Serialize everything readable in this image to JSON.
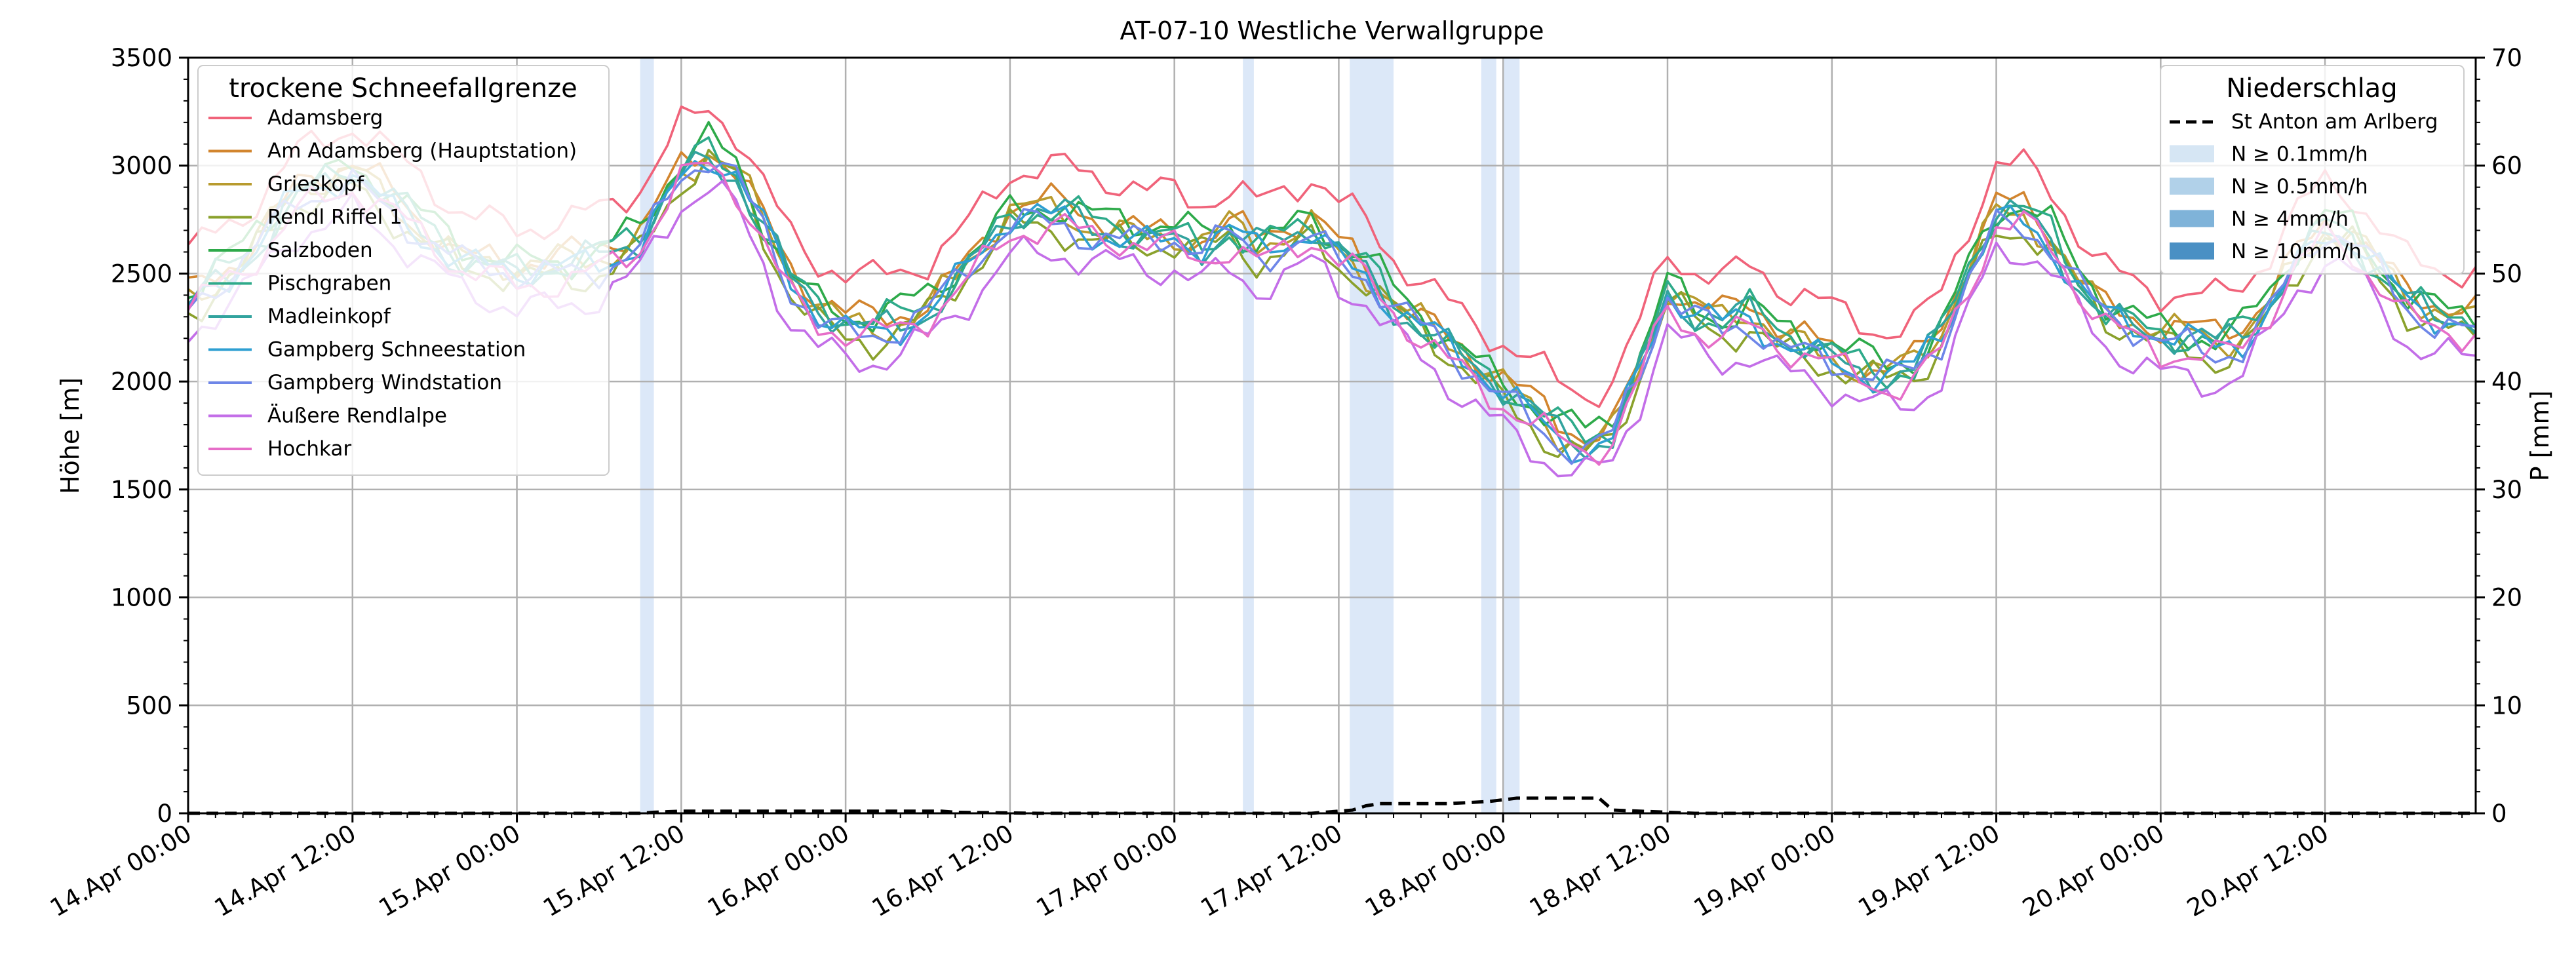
{
  "chart_data": {
    "type": "line",
    "title": "AT-07-10 Westliche Verwallgruppe",
    "ylabel_left": "Höhe [m]",
    "ylabel_right": "P [mm]",
    "ylim_left": [
      0,
      3500
    ],
    "ylim_right": [
      0,
      70
    ],
    "yticks_left": [
      "0",
      "500",
      "1000",
      "1500",
      "2000",
      "2500",
      "3000",
      "3500"
    ],
    "yticks_right": [
      "0",
      "10",
      "20",
      "30",
      "40",
      "50",
      "60",
      "70"
    ],
    "xlim_hours": [
      0,
      167
    ],
    "xticks": [
      {
        "label": "14.Apr 00:00",
        "hour": 0
      },
      {
        "label": "14.Apr 12:00",
        "hour": 12
      },
      {
        "label": "15.Apr 00:00",
        "hour": 24
      },
      {
        "label": "15.Apr 12:00",
        "hour": 36
      },
      {
        "label": "16.Apr 00:00",
        "hour": 48
      },
      {
        "label": "16.Apr 12:00",
        "hour": 60
      },
      {
        "label": "17.Apr 00:00",
        "hour": 72
      },
      {
        "label": "17.Apr 12:00",
        "hour": 84
      },
      {
        "label": "18.Apr 00:00",
        "hour": 96
      },
      {
        "label": "18.Apr 12:00",
        "hour": 108
      },
      {
        "label": "19.Apr 00:00",
        "hour": 120
      },
      {
        "label": "19.Apr 12:00",
        "hour": 132
      },
      {
        "label": "20.Apr 00:00",
        "hour": 144
      },
      {
        "label": "20.Apr 12:00",
        "hour": 156
      }
    ],
    "grid": true,
    "legend_left_title": "trockene Schneefallgrenze",
    "legend_left_position": "upper-left",
    "legend_right_title": "Niederschlag",
    "legend_right_position": "upper-right",
    "precip_legend": [
      {
        "label": "St Anton am Arlberg",
        "style": "dashed",
        "color": "#000000"
      },
      {
        "label": "N ≥ 0.1mm/h",
        "color": "#d6e6f4"
      },
      {
        "label": "N ≥ 0.5mm/h",
        "color": "#b1d1e9"
      },
      {
        "label": "N ≥ 4mm/h",
        "color": "#7fb3d9"
      },
      {
        "label": "N ≥ 10mm/h",
        "color": "#4a90c4"
      }
    ],
    "precip_bands": [
      {
        "start": 33,
        "end": 34
      },
      {
        "start": 77,
        "end": 77.8
      },
      {
        "start": 84.8,
        "end": 88
      },
      {
        "start": 94.4,
        "end": 95.5
      },
      {
        "start": 96,
        "end": 97.2
      }
    ],
    "precip_band_color": "#dce8f8",
    "precip_line": {
      "name": "St Anton am Arlberg",
      "hours": [
        0,
        33,
        34,
        36,
        40,
        55,
        56,
        62,
        76,
        82,
        85,
        86,
        87,
        92,
        95,
        97,
        103,
        104,
        110,
        167
      ],
      "values": [
        0,
        0,
        0.1,
        0.2,
        0.2,
        0.2,
        0.1,
        0,
        0,
        0,
        0.3,
        0.7,
        0.9,
        0.9,
        1.1,
        1.4,
        1.4,
        0.3,
        0,
        0
      ]
    },
    "series": [
      {
        "name": "Adamsberg",
        "color": "#f0637a",
        "offset": 230,
        "phase": 0.3
      },
      {
        "name": "Am Adamsberg (Hauptstation)",
        "color": "#d2852e",
        "offset": 55,
        "phase": 0.8
      },
      {
        "name": "Grieskopf",
        "color": "#b89b2e",
        "offset": 25,
        "phase": 1.4
      },
      {
        "name": "Rendl Riffel 1",
        "color": "#8aa12c",
        "offset": -35,
        "phase": 2.1
      },
      {
        "name": "Salzboden",
        "color": "#2eaa4a",
        "offset": 60,
        "phase": 2.7
      },
      {
        "name": "Pischgraben",
        "color": "#2eaa8a",
        "offset": 30,
        "phase": 3.3
      },
      {
        "name": "Madleinkopf",
        "color": "#32a39e",
        "offset": 10,
        "phase": 3.9
      },
      {
        "name": "Gampberg Schneestation",
        "color": "#2e9fd2",
        "offset": 0,
        "phase": 4.5
      },
      {
        "name": "Gampberg Windstation",
        "color": "#6e86e8",
        "offset": -15,
        "phase": 5.1
      },
      {
        "name": "Äußere Rendlalpe",
        "color": "#c36ee8",
        "offset": -150,
        "phase": 5.7
      },
      {
        "name": "Hochkar",
        "color": "#e66ec8",
        "offset": -40,
        "phase": 0.0
      }
    ],
    "base_profile": {
      "hours": [
        0,
        4,
        8,
        12,
        16,
        20,
        24,
        28,
        30,
        33,
        35,
        36,
        38,
        40,
        42,
        44,
        46,
        48,
        50,
        52,
        54,
        56,
        58,
        60,
        62,
        64,
        66,
        68,
        70,
        72,
        74,
        76,
        78,
        80,
        82,
        84,
        86,
        88,
        90,
        92,
        94,
        96,
        98,
        100,
        102,
        104,
        106,
        108,
        110,
        112,
        114,
        116,
        118,
        120,
        122,
        124,
        126,
        128,
        130,
        132,
        134,
        136,
        138,
        140,
        142,
        144,
        146,
        148,
        150,
        152,
        154,
        156,
        158,
        160,
        162,
        164,
        167
      ],
      "values": [
        2350,
        2550,
        2850,
        2950,
        2750,
        2550,
        2500,
        2520,
        2550,
        2650,
        2850,
        2950,
        3050,
        2950,
        2700,
        2450,
        2320,
        2250,
        2230,
        2270,
        2330,
        2450,
        2600,
        2750,
        2760,
        2750,
        2700,
        2680,
        2650,
        2660,
        2620,
        2680,
        2600,
        2650,
        2700,
        2580,
        2500,
        2350,
        2250,
        2150,
        2050,
        1950,
        1850,
        1750,
        1700,
        1750,
        2050,
        2400,
        2300,
        2250,
        2300,
        2200,
        2150,
        2100,
        2050,
        2020,
        2050,
        2200,
        2500,
        2750,
        2750,
        2650,
        2450,
        2300,
        2250,
        2200,
        2180,
        2150,
        2200,
        2350,
        2550,
        2700,
        2650,
        2500,
        2350,
        2300,
        2250
      ]
    }
  }
}
